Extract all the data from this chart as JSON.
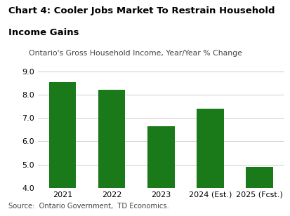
{
  "title_line1": "Chart 4: Cooler Jobs Market To Restrain Household",
  "title_line2": "Income Gains",
  "subtitle": "Ontario's Gross Household Income, Year/Year % Change",
  "categories": [
    "2021",
    "2022",
    "2023",
    "2024 (Est.)",
    "2025 (Fcst.)"
  ],
  "values": [
    8.55,
    8.2,
    6.65,
    7.4,
    4.9
  ],
  "bar_color": "#1a7a1a",
  "ylim": [
    4.0,
    9.0
  ],
  "yticks": [
    4.0,
    5.0,
    6.0,
    7.0,
    8.0,
    9.0
  ],
  "source": "Source:  Ontario Government,  TD Economics.",
  "title_fontsize": 9.5,
  "subtitle_fontsize": 7.8,
  "tick_fontsize": 8.0,
  "source_fontsize": 7.2,
  "background_color": "#ffffff",
  "grid_color": "#cccccc"
}
